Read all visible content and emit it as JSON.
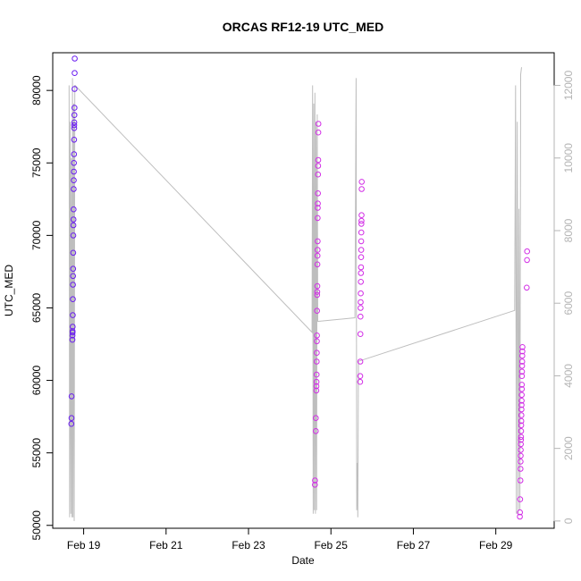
{
  "chart_data": {
    "type": "scatter",
    "title": "ORCAS RF12-19 UTC_MED",
    "xlabel": "Date",
    "ylabel": "UTC_MED",
    "x_ticks": [
      "Feb 19",
      "Feb 21",
      "Feb 23",
      "Feb 25",
      "Feb 27",
      "Feb 29"
    ],
    "y_ticks": [
      50000,
      55000,
      60000,
      65000,
      70000,
      75000,
      80000
    ],
    "y2_ticks": [
      0,
      2000,
      4000,
      6000,
      8000,
      10000,
      12000
    ],
    "xlim": [
      "2016-02-18T06:00",
      "2016-03-01T10:00"
    ],
    "ylim": [
      49800,
      82600
    ],
    "y2lim": [
      -200,
      12900
    ],
    "grid": false,
    "series": [
      {
        "color": "#6a1cf0",
        "points": [
          [
            "2016-02-18T16:50",
            57000
          ],
          [
            "2016-02-18T16:55",
            57400
          ],
          [
            "2016-02-18T16:58",
            58900
          ],
          [
            "2016-02-18T17:28",
            62800
          ],
          [
            "2016-02-18T17:30",
            63100
          ],
          [
            "2016-02-18T17:32",
            63300
          ],
          [
            "2016-02-18T17:34",
            63400
          ],
          [
            "2016-02-18T17:37",
            63700
          ],
          [
            "2016-02-18T17:40",
            64500
          ],
          [
            "2016-02-18T17:43",
            65600
          ],
          [
            "2016-02-18T17:46",
            66600
          ],
          [
            "2016-02-18T17:49",
            67200
          ],
          [
            "2016-02-18T17:52",
            67700
          ],
          [
            "2016-02-18T17:55",
            68800
          ],
          [
            "2016-02-18T17:58",
            70000
          ],
          [
            "2016-02-18T18:01",
            70700
          ],
          [
            "2016-02-18T18:04",
            71100
          ],
          [
            "2016-02-18T18:07",
            71800
          ],
          [
            "2016-02-18T18:10",
            73200
          ],
          [
            "2016-02-18T18:13",
            73800
          ],
          [
            "2016-02-18T18:16",
            74400
          ],
          [
            "2016-02-18T18:19",
            75000
          ],
          [
            "2016-02-18T18:22",
            75600
          ],
          [
            "2016-02-18T18:25",
            76600
          ],
          [
            "2016-02-18T18:28",
            77400
          ],
          [
            "2016-02-18T18:31",
            77600
          ],
          [
            "2016-02-18T18:34",
            77800
          ],
          [
            "2016-02-18T18:37",
            78300
          ],
          [
            "2016-02-18T18:40",
            78800
          ],
          [
            "2016-02-18T18:43",
            80100
          ],
          [
            "2016-02-18T18:46",
            81200
          ],
          [
            "2016-02-18T18:49",
            82200
          ]
        ]
      },
      {
        "color": "#d22ee6",
        "points": [
          [
            "2016-02-24T14:40",
            52800
          ],
          [
            "2016-02-24T14:42",
            53100
          ],
          [
            "2016-02-24T15:10",
            56500
          ],
          [
            "2016-02-24T15:12",
            57400
          ],
          [
            "2016-02-24T15:30",
            59300
          ],
          [
            "2016-02-24T15:33",
            59600
          ],
          [
            "2016-02-24T15:36",
            59900
          ],
          [
            "2016-02-24T15:39",
            60400
          ],
          [
            "2016-02-24T15:42",
            61300
          ],
          [
            "2016-02-24T15:45",
            61900
          ],
          [
            "2016-02-24T15:48",
            62700
          ],
          [
            "2016-02-24T15:51",
            63100
          ],
          [
            "2016-02-24T15:54",
            64800
          ],
          [
            "2016-02-24T15:57",
            65900
          ],
          [
            "2016-02-24T16:00",
            66100
          ],
          [
            "2016-02-24T16:03",
            66500
          ],
          [
            "2016-02-24T16:06",
            68000
          ],
          [
            "2016-02-24T16:09",
            68600
          ],
          [
            "2016-02-24T16:12",
            69000
          ],
          [
            "2016-02-24T16:15",
            69600
          ],
          [
            "2016-02-24T16:18",
            71200
          ],
          [
            "2016-02-24T16:21",
            71900
          ],
          [
            "2016-02-24T16:24",
            72200
          ],
          [
            "2016-02-24T16:27",
            72900
          ],
          [
            "2016-02-24T16:30",
            74200
          ],
          [
            "2016-02-24T16:33",
            74800
          ],
          [
            "2016-02-24T16:36",
            75200
          ],
          [
            "2016-02-24T16:39",
            77100
          ],
          [
            "2016-02-24T16:42",
            77700
          ],
          [
            "2016-02-25T17:00",
            59900
          ],
          [
            "2016-02-25T17:03",
            60300
          ],
          [
            "2016-02-25T17:06",
            61300
          ],
          [
            "2016-02-25T17:09",
            63200
          ],
          [
            "2016-02-25T17:12",
            64400
          ],
          [
            "2016-02-25T17:15",
            65000
          ],
          [
            "2016-02-25T17:18",
            65400
          ],
          [
            "2016-02-25T17:21",
            66000
          ],
          [
            "2016-02-25T17:24",
            66800
          ],
          [
            "2016-02-25T17:27",
            67400
          ],
          [
            "2016-02-25T17:30",
            67800
          ],
          [
            "2016-02-25T17:33",
            68500
          ],
          [
            "2016-02-25T17:36",
            69000
          ],
          [
            "2016-02-25T17:39",
            69600
          ],
          [
            "2016-02-25T17:42",
            70200
          ],
          [
            "2016-02-25T17:45",
            70800
          ],
          [
            "2016-02-25T17:48",
            71000
          ],
          [
            "2016-02-25T17:51",
            71400
          ],
          [
            "2016-02-25T17:54",
            73200
          ],
          [
            "2016-02-25T17:57",
            73700
          ],
          [
            "2016-02-29T14:00",
            50600
          ],
          [
            "2016-02-29T14:05",
            50900
          ],
          [
            "2016-02-29T14:10",
            51800
          ],
          [
            "2016-02-29T14:20",
            53100
          ],
          [
            "2016-02-29T14:23",
            53900
          ],
          [
            "2016-02-29T14:26",
            54400
          ],
          [
            "2016-02-29T14:29",
            54800
          ],
          [
            "2016-02-29T14:32",
            55200
          ],
          [
            "2016-02-29T14:35",
            55600
          ],
          [
            "2016-02-29T14:38",
            55900
          ],
          [
            "2016-02-29T14:41",
            56100
          ],
          [
            "2016-02-29T14:44",
            56500
          ],
          [
            "2016-02-29T14:47",
            56900
          ],
          [
            "2016-02-29T14:50",
            57200
          ],
          [
            "2016-02-29T14:53",
            57600
          ],
          [
            "2016-02-29T14:56",
            58000
          ],
          [
            "2016-02-29T14:59",
            58300
          ],
          [
            "2016-02-29T15:02",
            58600
          ],
          [
            "2016-02-29T15:05",
            59000
          ],
          [
            "2016-02-29T15:08",
            59400
          ],
          [
            "2016-02-29T15:11",
            59700
          ],
          [
            "2016-02-29T15:14",
            60300
          ],
          [
            "2016-02-29T15:17",
            60600
          ],
          [
            "2016-02-29T15:20",
            61000
          ],
          [
            "2016-02-29T15:23",
            61300
          ],
          [
            "2016-02-29T15:26",
            61700
          ],
          [
            "2016-02-29T15:29",
            62000
          ],
          [
            "2016-02-29T15:32",
            62300
          ],
          [
            "2016-02-29T18:00",
            66400
          ],
          [
            "2016-02-29T18:10",
            68300
          ],
          [
            "2016-02-29T18:15",
            68900
          ]
        ]
      }
    ],
    "secondary_line": {
      "color": "#bebebe",
      "axis": "right",
      "points": [
        [
          "2016-02-18T15:30",
          12000
        ],
        [
          "2016-02-18T15:50",
          100
        ],
        [
          "2016-02-18T16:10",
          11000
        ],
        [
          "2016-02-18T16:30",
          200
        ],
        [
          "2016-02-18T16:50",
          10000
        ],
        [
          "2016-02-18T17:10",
          100
        ],
        [
          "2016-02-18T17:30",
          12200
        ],
        [
          "2016-02-18T17:50",
          100
        ],
        [
          "2016-02-18T18:10",
          11500
        ],
        [
          "2016-02-18T18:30",
          0
        ],
        [
          "2016-02-18T18:50",
          12000
        ],
        [
          "2016-02-18T19:00",
          12000
        ],
        [
          "2016-02-24T13:00",
          5200
        ],
        [
          "2016-02-24T13:20",
          12000
        ],
        [
          "2016-02-24T13:40",
          200
        ],
        [
          "2016-02-24T14:00",
          11500
        ],
        [
          "2016-02-24T14:20",
          300
        ],
        [
          "2016-02-24T14:40",
          11800
        ],
        [
          "2016-02-24T15:00",
          200
        ],
        [
          "2016-02-24T15:20",
          11000
        ],
        [
          "2016-02-24T15:40",
          300
        ],
        [
          "2016-02-24T16:00",
          11200
        ],
        [
          "2016-02-24T16:20",
          5500
        ],
        [
          "2016-02-24T16:40",
          5500
        ],
        [
          "2016-02-25T14:00",
          5600
        ],
        [
          "2016-02-25T14:40",
          12200
        ],
        [
          "2016-02-25T15:00",
          300
        ],
        [
          "2016-02-25T15:20",
          1600
        ],
        [
          "2016-02-25T15:40",
          100
        ],
        [
          "2016-02-25T16:00",
          4400
        ],
        [
          "2016-02-29T11:00",
          5800
        ],
        [
          "2016-02-29T11:30",
          12000
        ],
        [
          "2016-02-29T12:00",
          200
        ],
        [
          "2016-02-29T12:30",
          11000
        ],
        [
          "2016-02-29T13:00",
          200
        ],
        [
          "2016-02-29T13:30",
          8600
        ],
        [
          "2016-02-29T14:00",
          300
        ],
        [
          "2016-02-29T14:30",
          12300
        ],
        [
          "2016-02-29T15:00",
          12500
        ]
      ]
    }
  }
}
